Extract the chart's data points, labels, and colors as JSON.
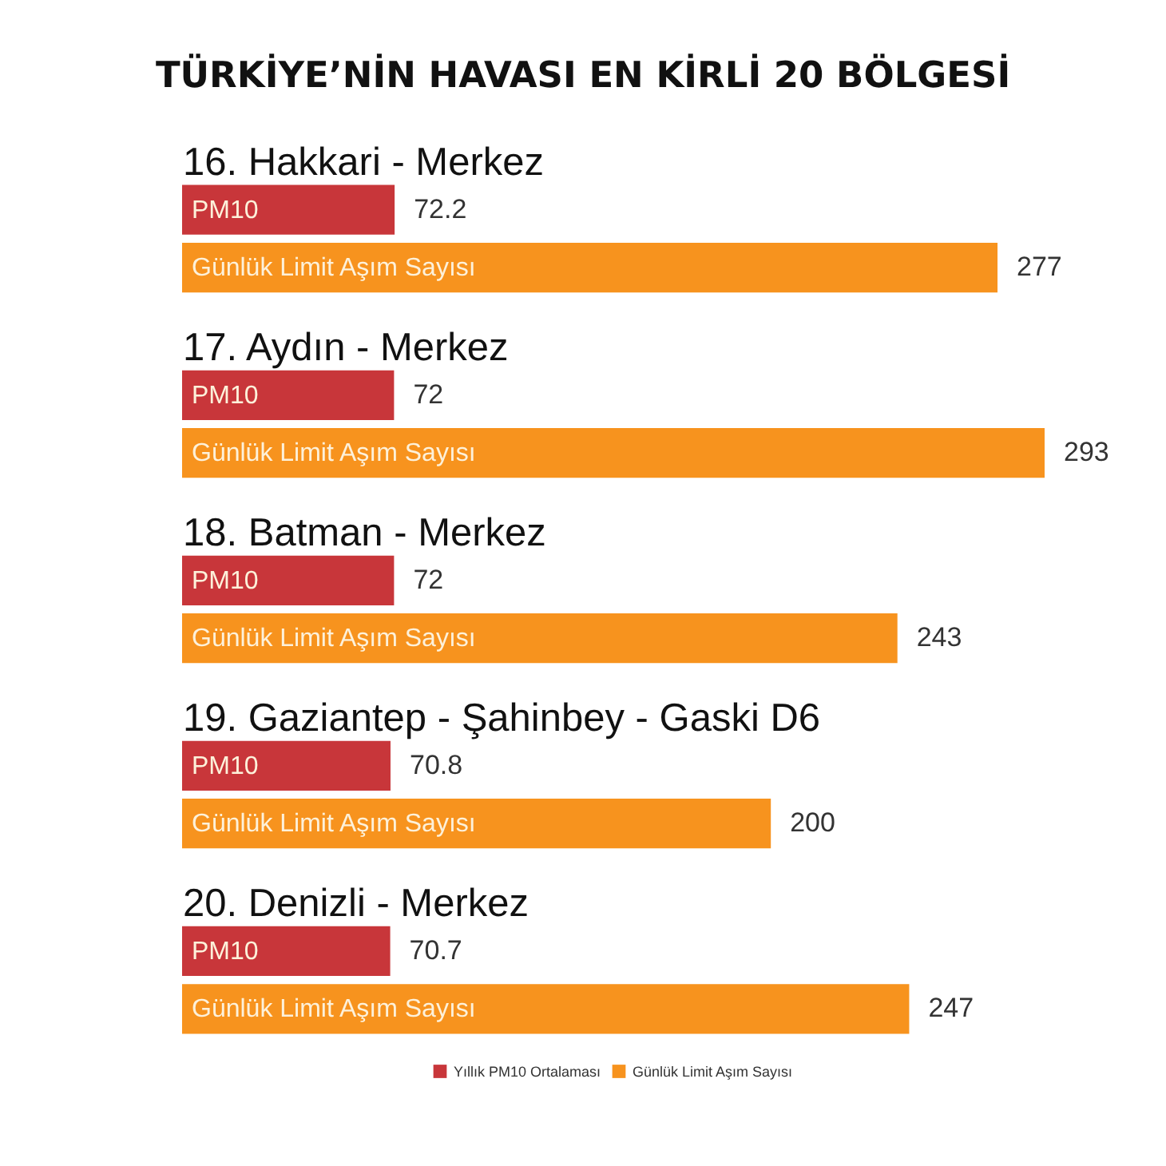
{
  "chart_data": {
    "type": "bar",
    "orientation": "horizontal",
    "title": "TÜRKİYE’NİN HAVASI EN KİRLİ 20 BÖLGESİ",
    "categories": [
      "16. Hakkari - Merkez",
      "17. Aydın - Merkez",
      "18. Batman - Merkez",
      "19. Gaziantep - Şahinbey - Gaski D6",
      "20. Denizli - Merkez"
    ],
    "series": [
      {
        "name": "Yıllık PM10 Ortalaması",
        "color": "#c8363a",
        "values": [
          72.2,
          72,
          72,
          70.8,
          70.7
        ]
      },
      {
        "name": "Günlük Limit Aşım Sayısı",
        "color": "#f7931e",
        "values": [
          277,
          293,
          243,
          200,
          247
        ]
      }
    ],
    "annotations": [
      {
        "text": "PM10",
        "y": "16. Hakkari - Merkez"
      },
      {
        "text": "Günlük Limit Aşım Sayısı",
        "y": "16. Hakkari - Merkez"
      },
      {
        "text": "PM10",
        "y": "17. Aydın - Merkez"
      },
      {
        "text": "Günlük Limit Aşım Sayısı",
        "y": "17. Aydın - Merkez"
      },
      {
        "text": "PM10",
        "y": "18. Batman - Merkez"
      },
      {
        "text": "Günlük Limit Aşım Sayısı",
        "y": "18. Batman - Merkez"
      },
      {
        "text": "PM10",
        "y": "19. Gaziantep - Şahinbey - Gaski D6"
      },
      {
        "text": "Günlük Limit Aşım Sayısı",
        "y": "19. Gaziantep - Şahinbey - Gaski D6"
      },
      {
        "text": "PM10",
        "y": "20. Denizli - Merkez"
      },
      {
        "text": "Günlük Limit Aşım Sayısı",
        "y": "20. Denizli - Merkez"
      }
    ],
    "data_labels": true,
    "legend": "bottom",
    "tick_labels": "y"
  }
}
